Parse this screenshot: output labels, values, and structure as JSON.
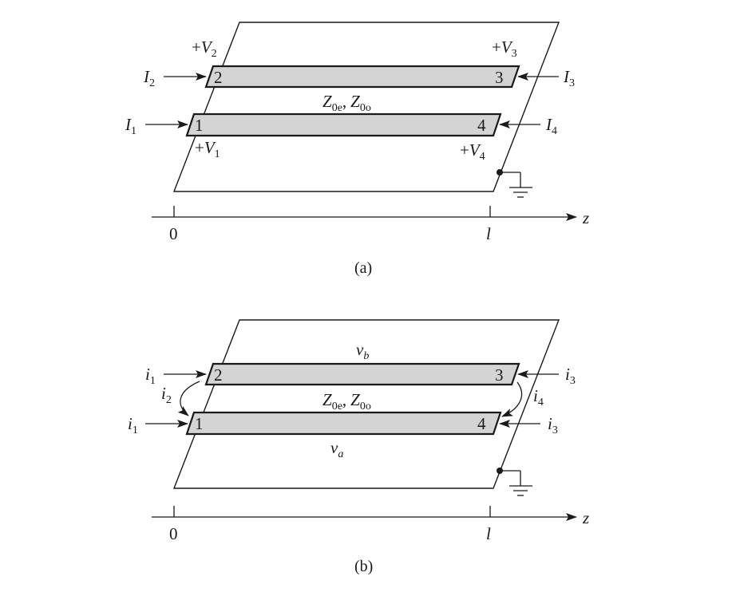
{
  "diagram_a": {
    "caption": "(a)",
    "strip_top": {
      "left_port": "2",
      "right_port": "3"
    },
    "strip_bottom": {
      "left_port": "1",
      "right_port": "4"
    },
    "impedance": {
      "ze_sym": "Z",
      "ze_sub": "0e",
      "sep": ",",
      "zo_sym": "Z",
      "zo_sub": "0o"
    },
    "currents": {
      "I1": {
        "sym": "I",
        "sub": "1"
      },
      "I2": {
        "sym": "I",
        "sub": "2"
      },
      "I3": {
        "sym": "I",
        "sub": "3"
      },
      "I4": {
        "sym": "I",
        "sub": "4"
      }
    },
    "voltages": {
      "V1": {
        "plus": "+",
        "sym": "V",
        "sub": "1"
      },
      "V2": {
        "plus": "+",
        "sym": "V",
        "sub": "2"
      },
      "V3": {
        "plus": "+",
        "sym": "V",
        "sub": "3"
      },
      "V4": {
        "plus": "+",
        "sym": "V",
        "sub": "4"
      }
    },
    "axis": {
      "origin": "0",
      "end": "l",
      "var": "z"
    }
  },
  "diagram_b": {
    "caption": "(b)",
    "strip_top": {
      "left_port": "2",
      "right_port": "3"
    },
    "strip_bottom": {
      "left_port": "1",
      "right_port": "4"
    },
    "impedance": {
      "ze_sym": "Z",
      "ze_sub": "0e",
      "sep": ",",
      "zo_sym": "Z",
      "zo_sub": "0o"
    },
    "line_voltages": {
      "vb": {
        "sym": "v",
        "sub": "b"
      },
      "va": {
        "sym": "v",
        "sub": "a"
      }
    },
    "currents": {
      "i1_top": {
        "sym": "i",
        "sub": "1"
      },
      "i1_bottom": {
        "sym": "i",
        "sub": "1"
      },
      "i2": {
        "sym": "i",
        "sub": "2"
      },
      "i3_top": {
        "sym": "i",
        "sub": "3"
      },
      "i3_bottom": {
        "sym": "i",
        "sub": "3"
      },
      "i4": {
        "sym": "i",
        "sub": "4"
      }
    },
    "axis": {
      "origin": "0",
      "end": "l",
      "var": "z"
    }
  }
}
